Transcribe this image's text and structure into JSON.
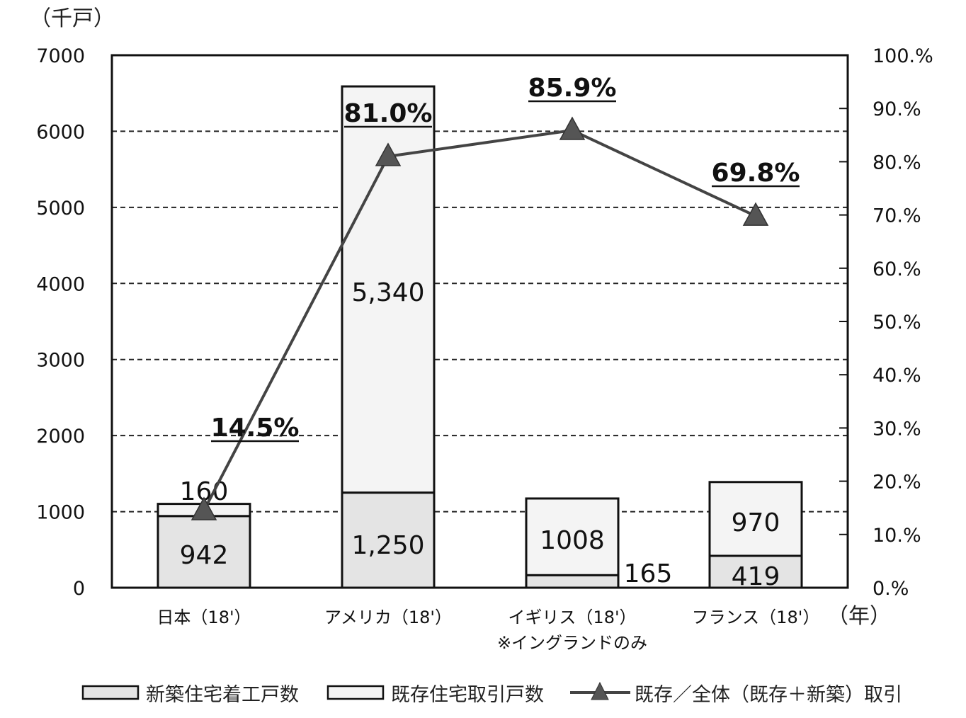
{
  "chart_data": {
    "type": "bar",
    "stacked": true,
    "y_unit_label": "（千戸）",
    "x_unit_label": "（年）",
    "categories": [
      "日本（18'）",
      "アメリカ（18'）",
      "イギリス（18'）",
      "フランス（18'）"
    ],
    "category_note": "※イングランドのみ",
    "series": [
      {
        "name": "新築住宅着工戸数",
        "values": [
          942,
          1250,
          165,
          419
        ],
        "labels": [
          "942",
          "1,250",
          "165",
          "419"
        ],
        "color": "#e4e4e4"
      },
      {
        "name": "既存住宅取引戸数",
        "values": [
          160,
          5340,
          1008,
          970
        ],
        "labels": [
          "160",
          "5,340",
          "1008",
          "970"
        ],
        "color": "#f4f4f4"
      }
    ],
    "line_series": {
      "name": "既存／全体（既存＋新築）取引",
      "values": [
        14.5,
        81.0,
        85.9,
        69.8
      ],
      "labels": [
        "14.5%",
        "81.0%",
        "85.9%",
        "69.8%"
      ],
      "color": "#444444"
    },
    "ylim": [
      0,
      7000
    ],
    "yticks": [
      "0",
      "1000",
      "2000",
      "3000",
      "4000",
      "5000",
      "6000",
      "7000"
    ],
    "y2lim": [
      0,
      100
    ],
    "y2ticks": [
      "0.%",
      "10.%",
      "20.%",
      "30.%",
      "40.%",
      "50.%",
      "60.%",
      "70.%",
      "80.%",
      "90.%",
      "100.%"
    ],
    "grid": "horizontal dashed",
    "legend_position": "bottom",
    "legend": [
      "新築住宅着工戸数",
      "既存住宅取引戸数",
      "既存／全体（既存＋新築）取引"
    ]
  }
}
